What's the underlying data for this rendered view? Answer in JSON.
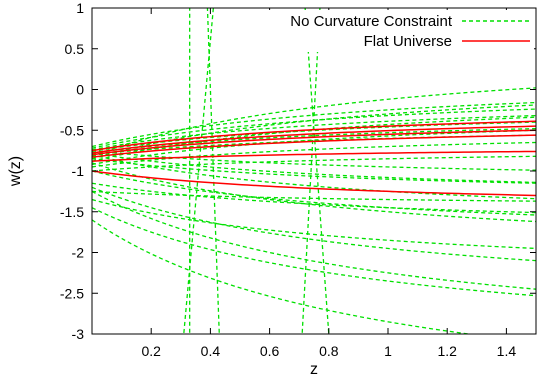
{
  "chart_data": {
    "type": "line",
    "xlabel": "z",
    "ylabel": "w(z)",
    "xlim": [
      0.0,
      1.5
    ],
    "ylim": [
      -3,
      1
    ],
    "xticks": [
      0.2,
      0.4,
      0.6,
      0.8,
      1,
      1.2,
      1.4
    ],
    "xtick_labels": [
      "0.2",
      "0.4",
      "0.6",
      "0.8",
      "1",
      "1.2",
      "1.4"
    ],
    "yticks": [
      1,
      0.5,
      0,
      -0.5,
      -1,
      -1.5,
      -2,
      -2.5,
      -3
    ],
    "ytick_labels": [
      "1",
      "0.5",
      "0",
      "-0.5",
      "-1",
      "-1.5",
      "-2",
      "-2.5",
      "-3"
    ],
    "grid": false,
    "legend_position": "top-right",
    "series": [
      {
        "name": "No Curvature Constraint",
        "color": "#00e000",
        "style": "dashed",
        "curves": [
          {
            "w0": -0.7,
            "wa": 0.9
          },
          {
            "w0": -0.72,
            "wa": 0.8
          },
          {
            "w0": -0.74,
            "wa": 0.7
          },
          {
            "w0": -0.76,
            "wa": 0.6
          },
          {
            "w0": -0.78,
            "wa": 0.5
          },
          {
            "w0": -0.8,
            "wa": 0.4
          },
          {
            "w0": -0.82,
            "wa": 1.4
          },
          {
            "w0": -0.85,
            "wa": 1.1
          },
          {
            "w0": -0.88,
            "wa": 0.9
          },
          {
            "w0": -0.92,
            "wa": 0.7
          },
          {
            "w0": -0.95,
            "wa": 0.5
          },
          {
            "w0": -1.0,
            "wa": 0.3
          },
          {
            "w0": -0.75,
            "wa": -0.4
          },
          {
            "w0": -0.78,
            "wa": -0.6
          },
          {
            "w0": -0.8,
            "wa": -0.9
          },
          {
            "w0": -0.85,
            "wa": -0.5
          },
          {
            "w0": -0.9,
            "wa": -1.2
          },
          {
            "w0": -1.0,
            "wa": -0.9
          },
          {
            "w0": -1.15,
            "wa": -0.6
          },
          {
            "w0": -1.2,
            "wa": -1.5
          },
          {
            "w0": -1.25,
            "wa": -2.0
          },
          {
            "w0": -1.35,
            "wa": -1.0
          },
          {
            "w0": -1.45,
            "wa": -1.8
          },
          {
            "w0": -1.6,
            "wa": -2.5
          },
          {
            "w0": -1.25,
            "wa": -0.2
          }
        ],
        "poles": [
          {
            "zp": 0.33,
            "k": 0.0
          },
          {
            "zp": 0.36,
            "k": 0.05
          },
          {
            "zp": 0.41,
            "k": -0.02
          },
          {
            "zp": 0.74,
            "k": 0.03
          },
          {
            "zp": 0.76,
            "k": -0.04
          }
        ]
      },
      {
        "name": "Flat Universe",
        "color": "#ff0000",
        "style": "solid",
        "curves": [
          {
            "w0": -0.75,
            "wa": 0.6
          },
          {
            "w0": -0.78,
            "wa": 0.55
          },
          {
            "w0": -0.8,
            "wa": 0.5
          },
          {
            "w0": -0.83,
            "wa": 0.45
          },
          {
            "w0": -0.88,
            "wa": 0.2
          },
          {
            "w0": -1.0,
            "wa": -0.5
          }
        ]
      }
    ]
  }
}
